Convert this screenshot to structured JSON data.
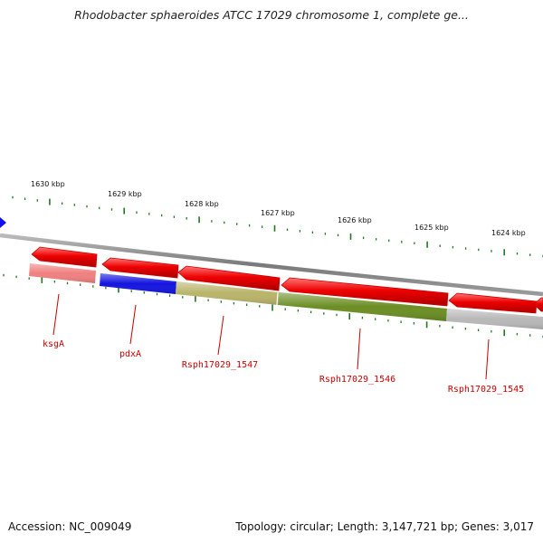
{
  "title": "Rhodobacter sphaeroides ATCC 17029 chromosome 1, complete ge...",
  "footer": {
    "accession": "Accession: NC_009049",
    "stats": "Topology: circular; Length: 3,147,721 bp; Genes: 3,017"
  },
  "scale": {
    "labels": [
      "1630 kbp",
      "1629 kbp",
      "1628 kbp",
      "1627 kbp",
      "1626 kbp",
      "1625 kbp",
      "1624 kbp"
    ]
  },
  "colors": {
    "gene_arrow": "#ee0000",
    "backbone": "#888888",
    "tick": "#227722",
    "label": "#cc0000",
    "scale_text": "#111111"
  },
  "genes": [
    {
      "name": "ksgA",
      "color": "#f08080"
    },
    {
      "name": "pdxA",
      "color": "#1414e0"
    },
    {
      "name": "Rsph17029_1547",
      "color": "#b9b46a"
    },
    {
      "name": "Rsph17029_1546",
      "color": "#6b8e23"
    },
    {
      "name": "Rsph17029_1545",
      "color": "#b8b8b8"
    }
  ]
}
